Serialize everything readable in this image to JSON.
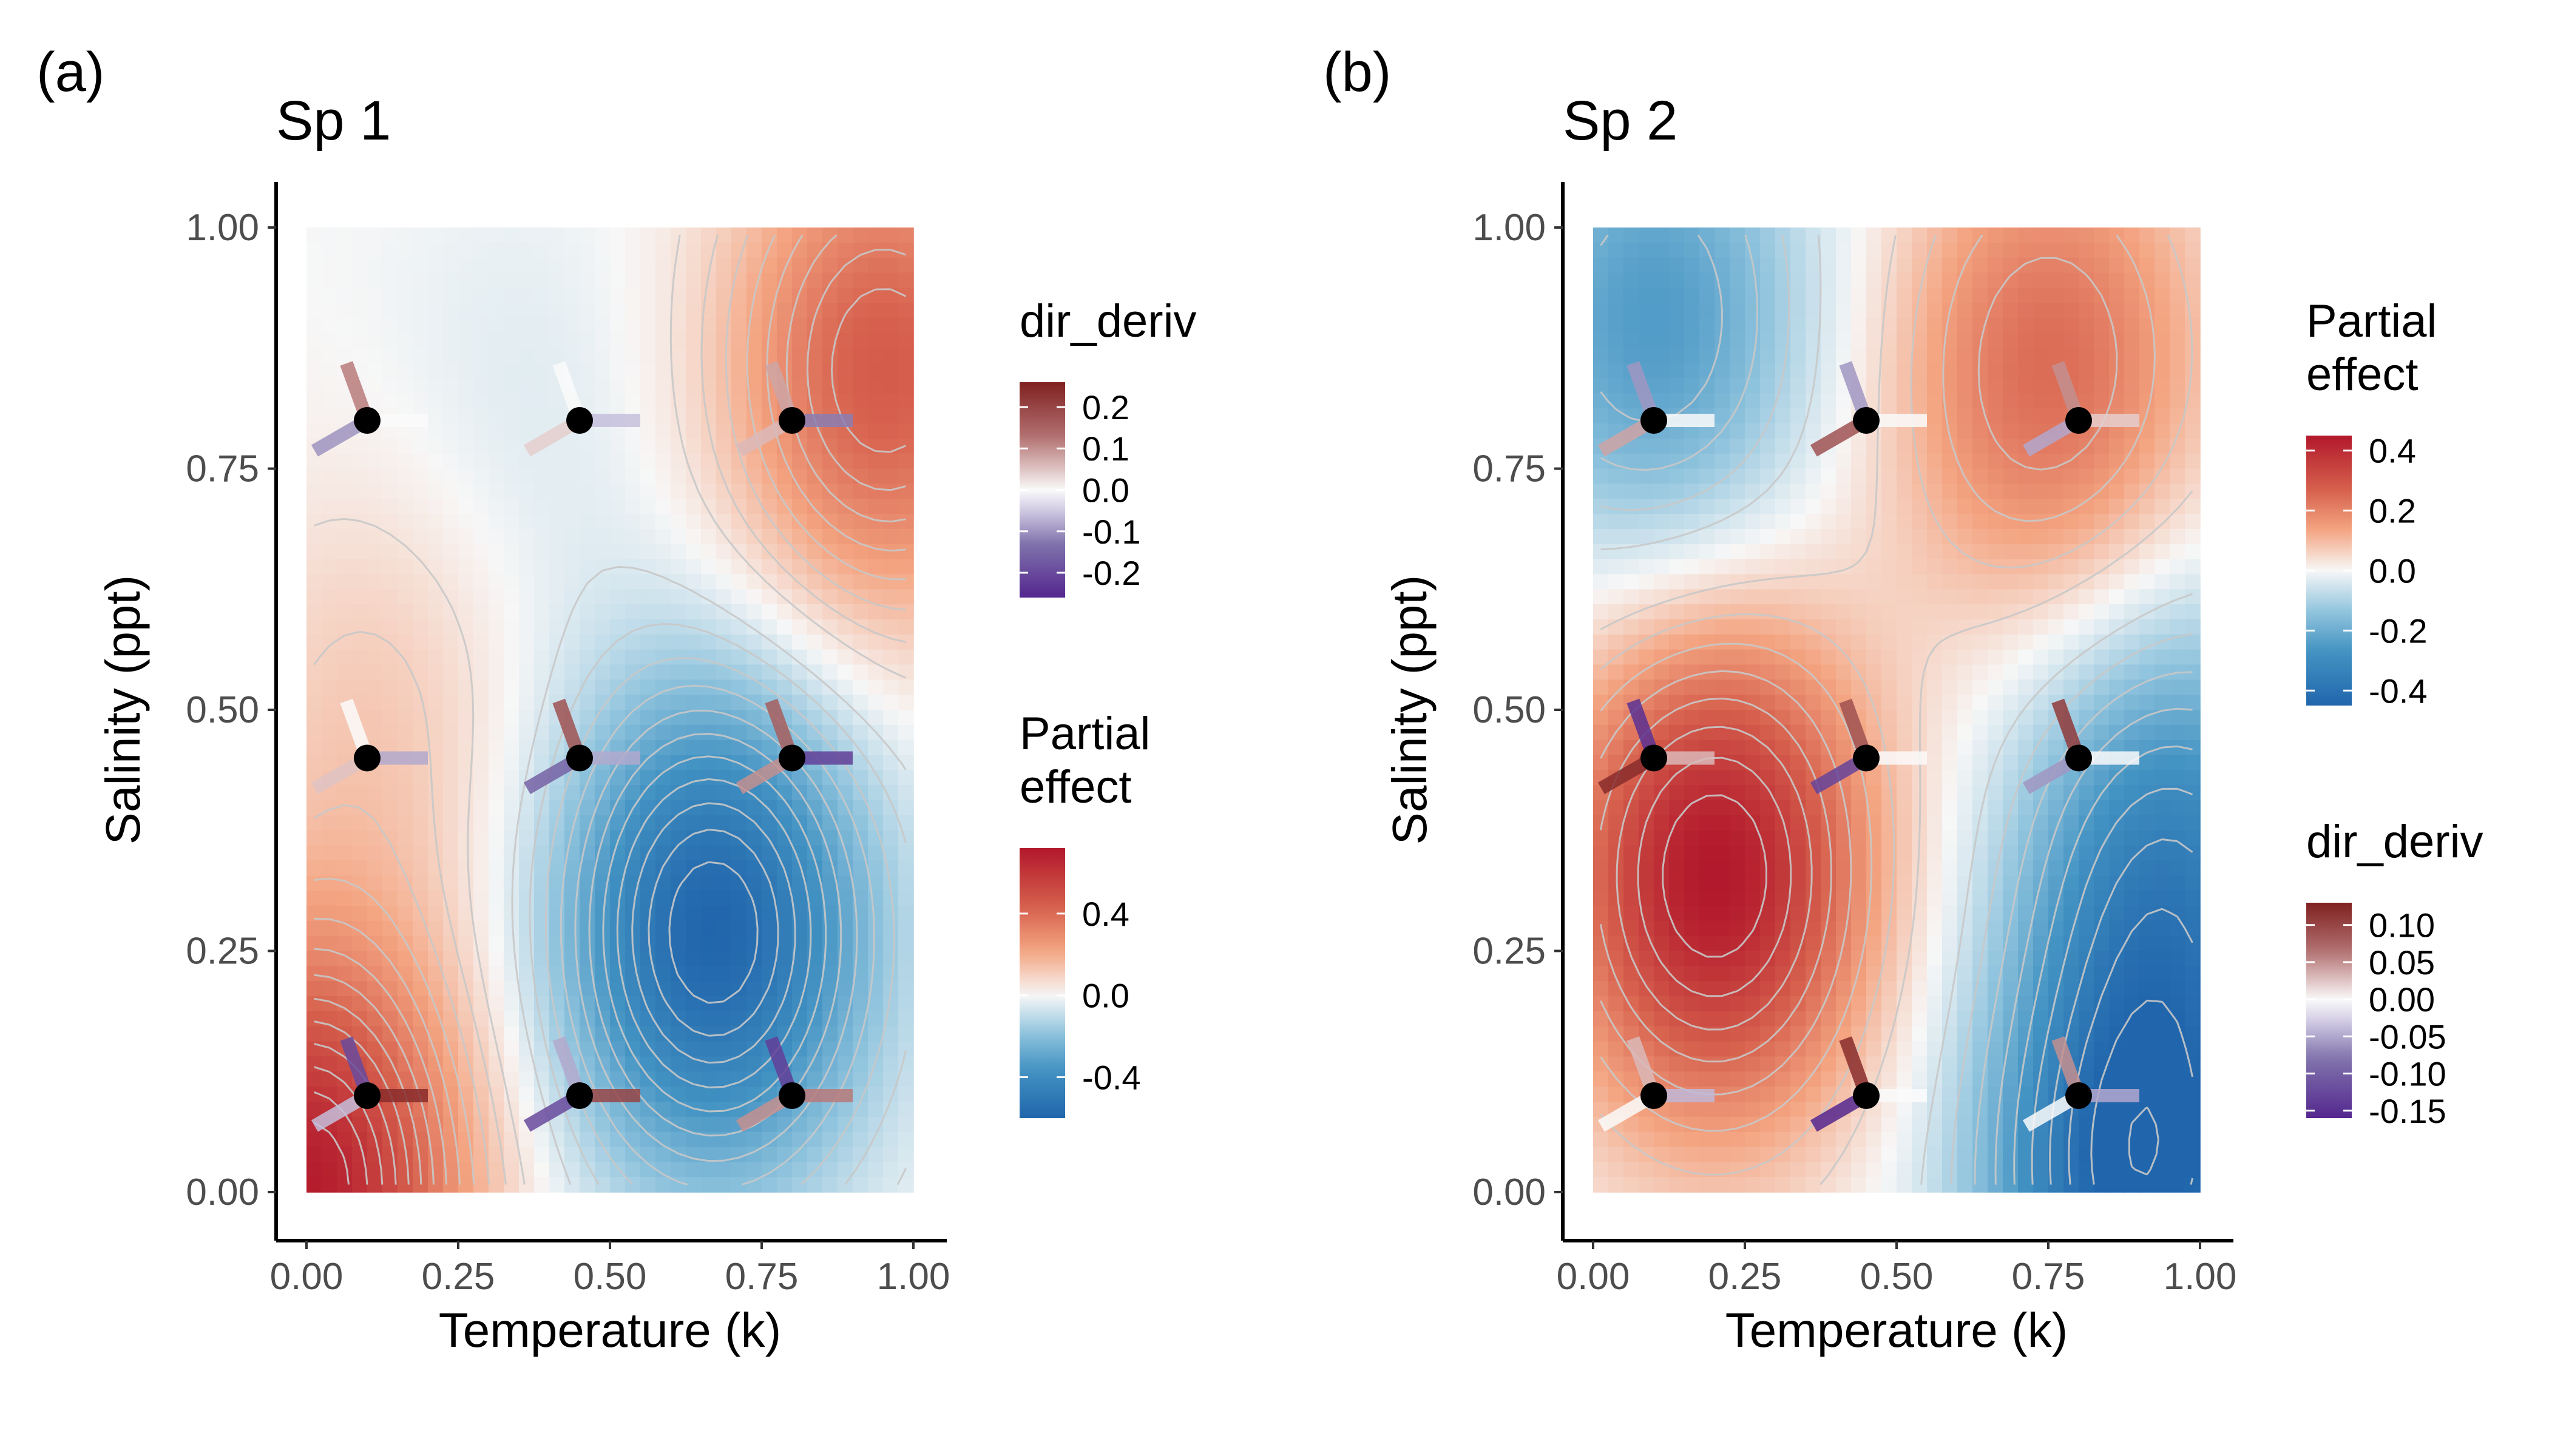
{
  "chart_data": [
    {
      "type": "heatmap",
      "panel_label": "(a)",
      "title": "Sp 1",
      "xlabel": "Temperature (k)",
      "ylabel": "Salinity (ppt)",
      "xlim": [
        0,
        1
      ],
      "ylim": [
        0,
        1
      ],
      "x_ticks": [
        "0.00",
        "0.25",
        "0.50",
        "0.75",
        "1.00"
      ],
      "y_ticks": [
        "0.00",
        "0.25",
        "0.50",
        "0.75",
        "1.00"
      ],
      "surface_peaks": [
        {
          "x": 0.0,
          "y": 0.0,
          "value": 0.7
        },
        {
          "x": 0.67,
          "y": 0.27,
          "value": -0.6
        },
        {
          "x": 0.95,
          "y": 0.85,
          "value": 0.45
        },
        {
          "x": 0.12,
          "y": 0.5,
          "value": 0.12
        },
        {
          "x": 0.35,
          "y": 0.78,
          "value": -0.05
        }
      ],
      "points": [
        {
          "x": 0.1,
          "y": 0.8,
          "arms": [
            0.12,
            -0.1,
            0.0
          ]
        },
        {
          "x": 0.45,
          "y": 0.8,
          "arms": [
            0.0,
            0.04,
            -0.06
          ]
        },
        {
          "x": 0.8,
          "y": 0.8,
          "arms": [
            0.08,
            0.06,
            -0.12
          ]
        },
        {
          "x": 0.1,
          "y": 0.45,
          "arms": [
            0.0,
            0.05,
            -0.08
          ]
        },
        {
          "x": 0.45,
          "y": 0.45,
          "arms": [
            0.18,
            -0.16,
            -0.08
          ]
        },
        {
          "x": 0.8,
          "y": 0.45,
          "arms": [
            0.16,
            0.1,
            -0.22
          ]
        },
        {
          "x": 0.1,
          "y": 0.1,
          "arms": [
            -0.2,
            -0.06,
            0.24
          ]
        },
        {
          "x": 0.45,
          "y": 0.1,
          "arms": [
            -0.08,
            -0.2,
            0.2
          ]
        },
        {
          "x": 0.8,
          "y": 0.1,
          "arms": [
            -0.22,
            0.1,
            0.12
          ]
        }
      ],
      "legends": [
        {
          "title": "dir_deriv",
          "labels": [
            "0.2",
            "0.1",
            "0.0",
            "-0.1",
            "-0.2"
          ],
          "values": [
            0.2,
            0.1,
            0.0,
            -0.1,
            -0.2
          ],
          "range": [
            -0.26,
            0.26
          ],
          "palette": "red-purple"
        },
        {
          "title": "Partial\neffect",
          "labels": [
            "0.4",
            "0.0",
            "-0.4"
          ],
          "values": [
            0.4,
            0.0,
            -0.4
          ],
          "range": [
            -0.6,
            0.72
          ],
          "palette": "red-blue"
        }
      ]
    },
    {
      "type": "heatmap",
      "panel_label": "(b)",
      "title": "Sp 2",
      "xlabel": "Temperature (k)",
      "ylabel": "Salinity (ppt)",
      "xlim": [
        0,
        1
      ],
      "ylim": [
        0,
        1
      ],
      "x_ticks": [
        "0.00",
        "0.25",
        "0.50",
        "0.75",
        "1.00"
      ],
      "y_ticks": [
        "0.00",
        "0.25",
        "0.50",
        "0.75",
        "1.00"
      ],
      "surface_peaks": [
        {
          "x": 0.2,
          "y": 0.33,
          "value": 0.45
        },
        {
          "x": 0.75,
          "y": 0.85,
          "value": 0.25
        },
        {
          "x": 0.1,
          "y": 0.9,
          "value": -0.25
        },
        {
          "x": 0.95,
          "y": 0.35,
          "value": -0.3
        },
        {
          "x": 0.9,
          "y": 0.0,
          "value": -0.45
        }
      ],
      "points": [
        {
          "x": 0.1,
          "y": 0.8,
          "arms": [
            -0.06,
            0.04,
            0.0
          ]
        },
        {
          "x": 0.45,
          "y": 0.8,
          "arms": [
            -0.06,
            0.09,
            0.0
          ]
        },
        {
          "x": 0.8,
          "y": 0.8,
          "arms": [
            0.05,
            -0.05,
            0.02
          ]
        },
        {
          "x": 0.1,
          "y": 0.45,
          "arms": [
            -0.15,
            0.12,
            0.03
          ]
        },
        {
          "x": 0.45,
          "y": 0.45,
          "arms": [
            0.09,
            -0.13,
            0.0
          ]
        },
        {
          "x": 0.8,
          "y": 0.45,
          "arms": [
            0.11,
            -0.06,
            0.0
          ]
        },
        {
          "x": 0.1,
          "y": 0.1,
          "arms": [
            0.03,
            0.0,
            -0.04
          ]
        },
        {
          "x": 0.45,
          "y": 0.1,
          "arms": [
            0.12,
            -0.16,
            0.0
          ]
        },
        {
          "x": 0.8,
          "y": 0.1,
          "arms": [
            0.05,
            0.0,
            -0.05
          ]
        }
      ],
      "legends": [
        {
          "title": "Partial\neffect",
          "labels": [
            "0.4",
            "0.2",
            "0.0",
            "-0.2",
            "-0.4"
          ],
          "values": [
            0.4,
            0.2,
            0.0,
            -0.2,
            -0.4
          ],
          "range": [
            -0.45,
            0.45
          ],
          "palette": "red-blue"
        },
        {
          "title": "dir_deriv",
          "labels": [
            "0.10",
            "0.05",
            "0.00",
            "-0.05",
            "-0.10",
            "-0.15"
          ],
          "values": [
            0.1,
            0.05,
            0.0,
            -0.05,
            -0.1,
            -0.15
          ],
          "range": [
            -0.16,
            0.13
          ],
          "palette": "red-purple"
        }
      ]
    }
  ]
}
